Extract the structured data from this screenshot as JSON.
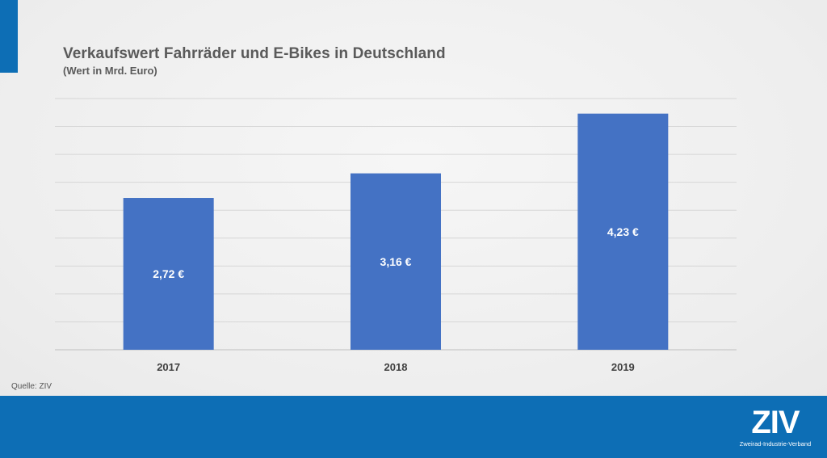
{
  "slide": {
    "title": "Verkaufswert Fahrräder und E-Bikes in Deutschland",
    "subtitle": "(Wert in Mrd. Euro)",
    "source": "Quelle: ZIV"
  },
  "logo": {
    "mark": "ZIV",
    "tagline": "Zweirad-Industrie-Verband"
  },
  "colors": {
    "bar": "#4472c4",
    "accent": "#0d6eb5",
    "grid": "#d6d6d6",
    "axis_text": "#404040",
    "label_text": "#ffffff"
  },
  "chart_data": {
    "type": "bar",
    "title": "Verkaufswert Fahrräder und E-Bikes in Deutschland",
    "subtitle": "(Wert in Mrd. Euro)",
    "categories": [
      "2017",
      "2018",
      "2019"
    ],
    "values": [
      2.72,
      3.16,
      4.23
    ],
    "data_labels": [
      "2,72 €",
      "3,16 €",
      "4,23 €"
    ],
    "xlabel": "",
    "ylabel": "",
    "ylim": [
      0,
      4.5
    ],
    "gridlines": 9,
    "grid": true,
    "legend": "none"
  }
}
